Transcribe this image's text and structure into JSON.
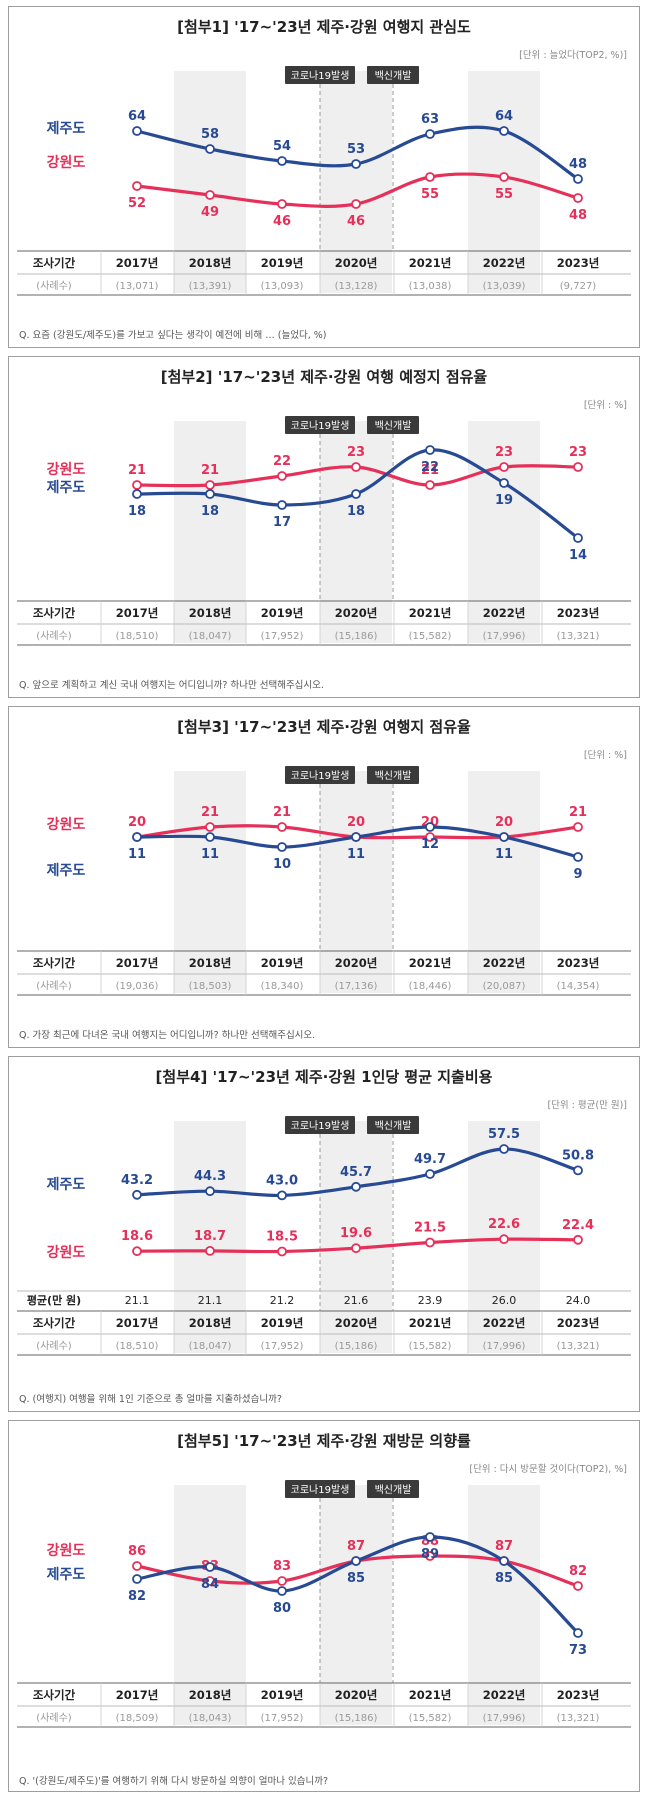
{
  "colors": {
    "jeju": "#274a93",
    "gangwon": "#e5305a",
    "shade": "#efefef",
    "tag_bg": "#3a3a3a"
  },
  "labels": {
    "covid": "코로나19발생",
    "vaccine": "백신개발",
    "period": "조사기간",
    "cases": "(사례수)"
  },
  "years": [
    "2017년",
    "2018년",
    "2019년",
    "2020년",
    "2021년",
    "2022년",
    "2023년"
  ],
  "chart_data": [
    {
      "type": "line",
      "title": "[첨부1] '17~'23년 제주·강원 여행지 관심도",
      "unit": "[단위 : 늘었다(TOP2, %)]",
      "question": "Q. 요즘 (강원도/제주도)를 가보고 싶다는 생각이 예전에 비해 … (늘었다, %)",
      "series": [
        {
          "name": "제주도",
          "color": "#274a93",
          "values": [
            64,
            58,
            54,
            53,
            63,
            64,
            48
          ]
        },
        {
          "name": "강원도",
          "color": "#e5305a",
          "values": [
            52,
            49,
            46,
            46,
            55,
            55,
            48
          ]
        }
      ],
      "sample_sizes": [
        "(13,071)",
        "(13,391)",
        "(13,093)",
        "(13,128)",
        "(13,038)",
        "(13,039)",
        "(9,727)"
      ]
    },
    {
      "type": "line",
      "title": "[첨부2] '17~'23년 제주·강원 여행 예정지 점유율",
      "unit": "[단위 : %]",
      "question": "Q. 앞으로 계획하고 계신 국내 여행지는 어디입니까? 하나만 선택해주십시오.",
      "series": [
        {
          "name": "강원도",
          "color": "#e5305a",
          "values": [
            21,
            21,
            22,
            23,
            21,
            23,
            23
          ]
        },
        {
          "name": "제주도",
          "color": "#274a93",
          "values": [
            18,
            18,
            17,
            18,
            22,
            19,
            14
          ]
        }
      ],
      "sample_sizes": [
        "(18,510)",
        "(18,047)",
        "(17,952)",
        "(15,186)",
        "(15,582)",
        "(17,996)",
        "(13,321)"
      ]
    },
    {
      "type": "line",
      "title": "[첨부3] '17~'23년 제주·강원 여행지 점유율",
      "unit": "[단위 : %]",
      "question": "Q. 가장 최근에 다녀온 국내 여행지는 어디입니까? 하나만 선택해주십시오.",
      "series": [
        {
          "name": "강원도",
          "color": "#e5305a",
          "values": [
            20,
            21,
            21,
            20,
            20,
            20,
            21
          ]
        },
        {
          "name": "제주도",
          "color": "#274a93",
          "values": [
            11,
            11,
            10,
            11,
            12,
            11,
            9
          ]
        }
      ],
      "sample_sizes": [
        "(19,036)",
        "(18,503)",
        "(18,340)",
        "(17,136)",
        "(18,446)",
        "(20,087)",
        "(14,354)"
      ]
    },
    {
      "type": "line",
      "title": "[첨부4] '17~'23년 제주·강원 1인당 평균 지출비용",
      "unit": "[단위 : 평균(만 원)]",
      "question": "Q. (여행지) 여행을 위해 1인 기준으로 총 얼마를 지출하셨습니까?",
      "series": [
        {
          "name": "제주도",
          "color": "#274a93",
          "values": [
            43.2,
            44.3,
            43.0,
            45.7,
            49.7,
            57.5,
            50.8
          ]
        },
        {
          "name": "강원도",
          "color": "#e5305a",
          "values": [
            18.6,
            18.7,
            18.5,
            19.6,
            21.5,
            22.6,
            22.4
          ]
        }
      ],
      "avg_label": "평균(만 원)",
      "avg_values": [
        "21.1",
        "21.1",
        "21.2",
        "21.6",
        "23.9",
        "26.0",
        "24.0"
      ],
      "sample_sizes": [
        "(18,510)",
        "(18,047)",
        "(17,952)",
        "(15,186)",
        "(15,582)",
        "(17,996)",
        "(13,321)"
      ]
    },
    {
      "type": "line",
      "title": "[첨부5] '17~'23년 제주·강원 재방문 의향률",
      "unit": "[단위 : 다시 방문할 것이다(TOP2), %]",
      "question": "Q. '(강원도/제주도)'를 여행하기 위해 다시 방문하실 의향이 얼마나 있습니까?",
      "series": [
        {
          "name": "강원도",
          "color": "#e5305a",
          "values": [
            86,
            83,
            83,
            87,
            88,
            87,
            82
          ]
        },
        {
          "name": "제주도",
          "color": "#274a93",
          "values": [
            82,
            84,
            80,
            85,
            89,
            85,
            73
          ]
        }
      ],
      "sample_sizes": [
        "(18,509)",
        "(18,043)",
        "(17,952)",
        "(15,186)",
        "(15,582)",
        "(17,996)",
        "(13,321)"
      ]
    }
  ]
}
